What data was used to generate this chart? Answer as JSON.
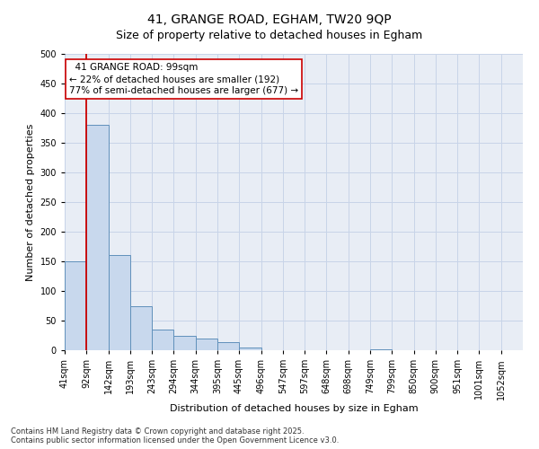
{
  "title1": "41, GRANGE ROAD, EGHAM, TW20 9QP",
  "title2": "Size of property relative to detached houses in Egham",
  "xlabel": "Distribution of detached houses by size in Egham",
  "ylabel": "Number of detached properties",
  "bin_labels": [
    "41sqm",
    "92sqm",
    "142sqm",
    "193sqm",
    "243sqm",
    "294sqm",
    "344sqm",
    "395sqm",
    "445sqm",
    "496sqm",
    "547sqm",
    "597sqm",
    "648sqm",
    "698sqm",
    "749sqm",
    "799sqm",
    "850sqm",
    "900sqm",
    "951sqm",
    "1001sqm",
    "1052sqm"
  ],
  "bin_edges": [
    41,
    92,
    142,
    193,
    243,
    294,
    344,
    395,
    445,
    496,
    547,
    597,
    648,
    698,
    749,
    799,
    850,
    900,
    951,
    1001,
    1052
  ],
  "values": [
    150,
    380,
    160,
    75,
    35,
    25,
    20,
    13,
    5,
    0,
    0,
    0,
    0,
    0,
    2,
    0,
    0,
    0,
    0,
    0
  ],
  "bar_facecolor": "#c8d8ed",
  "bar_edgecolor": "#6090bb",
  "bar_linewidth": 0.7,
  "red_line_color": "#cc0000",
  "red_line_x": 92,
  "annotation_line1": "  41 GRANGE ROAD: 99sqm",
  "annotation_line2": "← 22% of detached houses are smaller (192)",
  "annotation_line3": "77% of semi-detached houses are larger (677) →",
  "annot_facecolor": "#ffffff",
  "annot_edgecolor": "#cc0000",
  "ylim": [
    0,
    500
  ],
  "yticks": [
    0,
    50,
    100,
    150,
    200,
    250,
    300,
    350,
    400,
    450,
    500
  ],
  "grid_color": "#c8d4e8",
  "bg_color": "#e8edf5",
  "title1_fontsize": 10,
  "title2_fontsize": 9,
  "axis_label_fontsize": 8,
  "tick_fontsize": 7,
  "annot_fontsize": 7.5,
  "footnote1": "Contains HM Land Registry data © Crown copyright and database right 2025.",
  "footnote2": "Contains public sector information licensed under the Open Government Licence v3.0.",
  "footnote_fontsize": 6
}
